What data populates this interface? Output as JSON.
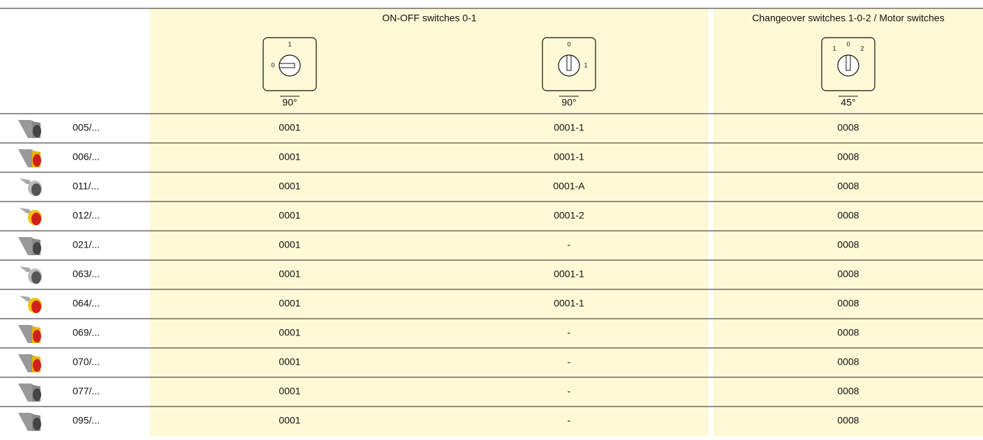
{
  "table": {
    "header": {
      "groups": [
        "ON-OFF switches 0-1",
        "Changeover switches 1-0-2 / Motor switches"
      ],
      "diagrams": [
        {
          "labels": [
            "1",
            "0"
          ],
          "angle": "90°"
        },
        {
          "labels": [
            "0",
            "1"
          ],
          "angle": "90°"
        },
        {
          "labels": [
            "1",
            "0",
            "2"
          ],
          "angle": "45°"
        }
      ]
    },
    "rows": [
      [
        "005/...",
        "0001",
        "0001-1",
        "0008"
      ],
      [
        "006/...",
        "0001",
        "0001-1",
        "0008"
      ],
      [
        "011/...",
        "0001",
        "0001-A",
        "0008"
      ],
      [
        "012/...",
        "0001",
        "0001-2",
        "0008"
      ],
      [
        "021/...",
        "0001",
        "-",
        "0008"
      ],
      [
        "063/...",
        "0001",
        "0001-1",
        "0008"
      ],
      [
        "064/...",
        "0001",
        "0001-1",
        "0008"
      ],
      [
        "069/...",
        "0001",
        "-",
        "0008"
      ],
      [
        "070/...",
        "0001",
        "-",
        "0008"
      ],
      [
        "077/...",
        "0001",
        "-",
        "0008"
      ],
      [
        "095/...",
        "0001",
        "-",
        "0008"
      ]
    ]
  }
}
